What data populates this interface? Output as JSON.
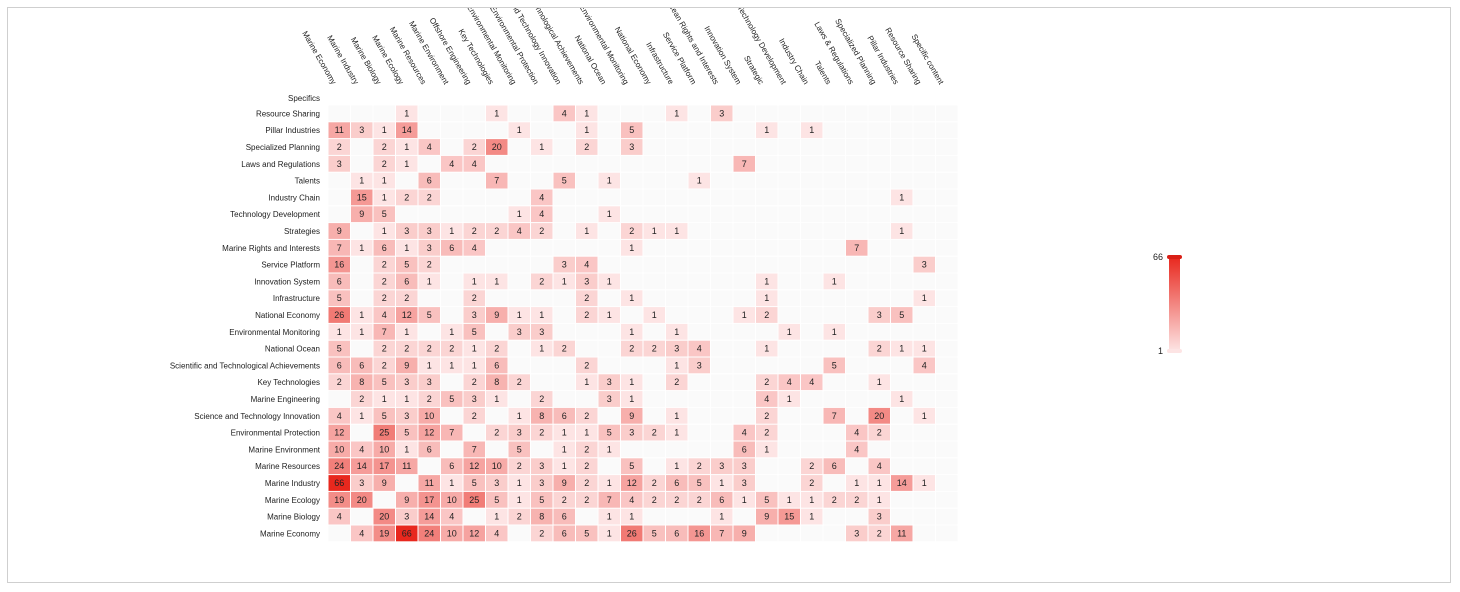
{
  "chart_data": {
    "type": "heatmap",
    "corner_label": "Specifics",
    "columns": [
      "Marine Economy",
      "Marine Industry",
      "Marine Biology",
      "Marine Ecology",
      "Marine Resources",
      "Marine Environment",
      "Offshore Engineering",
      "Key Technologies",
      "Environmental Monitoring",
      "Environmental Protection",
      "Science and Technology Innovation",
      "Scientific and Technological Achievements",
      "National Ocean",
      "Environmental Monitoring",
      "National Economy",
      "Infrastructure",
      "Service Platform",
      "Ocean Rights and Interests",
      "Innovation System",
      "Strategic",
      "Technology Development",
      "Industry Chain",
      "Talents",
      "Laws & Regulations",
      "Specialized Planning",
      "Pillar Industries",
      "Resource Sharing",
      "Specific content"
    ],
    "rows": [
      {
        "label": "Resource Sharing",
        "values": [
          null,
          null,
          null,
          1,
          null,
          null,
          null,
          1,
          null,
          null,
          4,
          1,
          null,
          null,
          null,
          1,
          null,
          3,
          null,
          null,
          null,
          null,
          null,
          null,
          null,
          null,
          null,
          null
        ]
      },
      {
        "label": "Pillar Industries",
        "values": [
          11,
          3,
          1,
          14,
          null,
          null,
          null,
          null,
          1,
          null,
          null,
          1,
          null,
          5,
          null,
          null,
          null,
          null,
          null,
          1,
          null,
          1,
          null,
          null,
          null,
          null,
          null,
          null
        ]
      },
      {
        "label": "Specialized Planning",
        "values": [
          2,
          null,
          2,
          1,
          4,
          null,
          2,
          20,
          null,
          1,
          null,
          2,
          null,
          3,
          null,
          null,
          null,
          null,
          null,
          null,
          null,
          null,
          null,
          null,
          null,
          null,
          null,
          null
        ]
      },
      {
        "label": "Laws and Regulations",
        "values": [
          3,
          null,
          2,
          1,
          null,
          4,
          4,
          null,
          null,
          null,
          null,
          null,
          null,
          null,
          null,
          null,
          null,
          null,
          7,
          null,
          null,
          null,
          null,
          null,
          null,
          null,
          null,
          null
        ]
      },
      {
        "label": "Talents",
        "values": [
          null,
          1,
          1,
          null,
          6,
          null,
          null,
          7,
          null,
          null,
          5,
          null,
          1,
          null,
          null,
          null,
          1,
          null,
          null,
          null,
          null,
          null,
          null,
          null,
          null,
          null,
          null,
          null
        ]
      },
      {
        "label": "Industry Chain",
        "values": [
          null,
          15,
          1,
          2,
          2,
          null,
          null,
          null,
          null,
          4,
          null,
          null,
          null,
          null,
          null,
          null,
          null,
          null,
          null,
          null,
          null,
          null,
          null,
          null,
          null,
          1,
          null,
          null
        ]
      },
      {
        "label": "Technology Development",
        "values": [
          null,
          9,
          5,
          null,
          null,
          null,
          null,
          null,
          1,
          4,
          null,
          null,
          1,
          null,
          null,
          null,
          null,
          null,
          null,
          null,
          null,
          null,
          null,
          null,
          null,
          null,
          null,
          null
        ]
      },
      {
        "label": "Strategies",
        "values": [
          9,
          null,
          1,
          3,
          3,
          1,
          2,
          2,
          4,
          2,
          null,
          1,
          null,
          2,
          1,
          1,
          null,
          null,
          null,
          null,
          null,
          null,
          null,
          null,
          null,
          1,
          null,
          null
        ]
      },
      {
        "label": "Marine Rights and Interests",
        "values": [
          7,
          1,
          6,
          1,
          3,
          6,
          4,
          null,
          null,
          null,
          null,
          null,
          null,
          1,
          null,
          null,
          null,
          null,
          null,
          null,
          null,
          null,
          null,
          7,
          null,
          null,
          null,
          null
        ]
      },
      {
        "label": "Service Platform",
        "values": [
          16,
          null,
          2,
          5,
          2,
          null,
          null,
          null,
          null,
          null,
          3,
          4,
          null,
          null,
          null,
          null,
          null,
          null,
          null,
          null,
          null,
          null,
          null,
          null,
          null,
          null,
          3,
          null
        ]
      },
      {
        "label": "Innovation System",
        "values": [
          6,
          null,
          2,
          6,
          1,
          null,
          1,
          1,
          null,
          2,
          1,
          3,
          1,
          null,
          null,
          null,
          null,
          null,
          null,
          1,
          null,
          null,
          1,
          null,
          null,
          null,
          null,
          null
        ]
      },
      {
        "label": "Infrastructure",
        "values": [
          5,
          null,
          2,
          2,
          null,
          null,
          2,
          null,
          null,
          null,
          null,
          2,
          null,
          1,
          null,
          null,
          null,
          null,
          null,
          1,
          null,
          null,
          null,
          null,
          null,
          null,
          1,
          null
        ]
      },
      {
        "label": "National Economy",
        "values": [
          26,
          1,
          4,
          12,
          5,
          null,
          3,
          9,
          1,
          1,
          null,
          2,
          1,
          null,
          1,
          null,
          null,
          null,
          1,
          2,
          null,
          null,
          null,
          null,
          3,
          5,
          null,
          null
        ]
      },
      {
        "label": "Environmental Monitoring",
        "values": [
          1,
          1,
          7,
          1,
          null,
          1,
          5,
          null,
          3,
          3,
          null,
          null,
          null,
          1,
          null,
          1,
          null,
          null,
          null,
          null,
          1,
          null,
          1,
          null,
          null,
          null,
          null,
          null
        ]
      },
      {
        "label": "National Ocean",
        "values": [
          5,
          null,
          2,
          2,
          2,
          2,
          1,
          2,
          null,
          1,
          2,
          null,
          null,
          2,
          2,
          3,
          4,
          null,
          null,
          1,
          null,
          null,
          null,
          null,
          2,
          1,
          1,
          null
        ]
      },
      {
        "label": "Scientific and Technological Achievements",
        "values": [
          6,
          6,
          2,
          9,
          1,
          1,
          1,
          6,
          null,
          null,
          null,
          2,
          null,
          null,
          null,
          1,
          3,
          null,
          null,
          null,
          null,
          null,
          5,
          null,
          null,
          null,
          4,
          null
        ]
      },
      {
        "label": "Key Technologies",
        "values": [
          2,
          8,
          5,
          3,
          3,
          null,
          2,
          8,
          2,
          null,
          null,
          1,
          3,
          1,
          null,
          2,
          null,
          null,
          null,
          2,
          4,
          4,
          null,
          null,
          1,
          null,
          null,
          null
        ]
      },
      {
        "label": "Marine Engineering",
        "values": [
          null,
          2,
          1,
          1,
          2,
          5,
          3,
          1,
          null,
          2,
          null,
          null,
          3,
          1,
          null,
          null,
          null,
          null,
          null,
          4,
          1,
          null,
          null,
          null,
          null,
          1,
          null,
          null
        ]
      },
      {
        "label": "Science and Technology Innovation",
        "values": [
          4,
          1,
          5,
          3,
          10,
          null,
          2,
          null,
          1,
          8,
          6,
          2,
          null,
          9,
          null,
          1,
          null,
          null,
          null,
          2,
          null,
          null,
          7,
          null,
          20,
          null,
          1,
          null
        ]
      },
      {
        "label": "Environmental Protection",
        "values": [
          12,
          null,
          25,
          5,
          12,
          7,
          null,
          2,
          3,
          2,
          1,
          1,
          5,
          3,
          2,
          1,
          null,
          null,
          4,
          2,
          null,
          null,
          null,
          4,
          2,
          null,
          null,
          null
        ]
      },
      {
        "label": "Marine Environment",
        "values": [
          10,
          4,
          10,
          1,
          6,
          null,
          7,
          null,
          5,
          null,
          1,
          2,
          1,
          null,
          null,
          null,
          null,
          null,
          6,
          1,
          null,
          null,
          null,
          4,
          null,
          null,
          null,
          null
        ]
      },
      {
        "label": "Marine Resources",
        "values": [
          24,
          14,
          17,
          11,
          null,
          6,
          12,
          10,
          2,
          3,
          1,
          2,
          null,
          5,
          null,
          1,
          2,
          3,
          3,
          null,
          null,
          2,
          6,
          null,
          4,
          null,
          null,
          null
        ]
      },
      {
        "label": "Marine Industry",
        "values": [
          66,
          3,
          9,
          null,
          11,
          1,
          5,
          3,
          1,
          3,
          9,
          2,
          1,
          12,
          2,
          6,
          5,
          1,
          3,
          null,
          null,
          2,
          null,
          1,
          1,
          14,
          1,
          null
        ]
      },
      {
        "label": "Marine Ecology",
        "values": [
          19,
          20,
          null,
          9,
          17,
          10,
          25,
          5,
          1,
          5,
          2,
          2,
          7,
          4,
          2,
          2,
          2,
          6,
          1,
          5,
          1,
          1,
          2,
          2,
          1,
          null,
          null,
          null
        ]
      },
      {
        "label": "Marine Biology",
        "values": [
          4,
          null,
          20,
          3,
          14,
          4,
          null,
          1,
          2,
          8,
          6,
          null,
          1,
          1,
          null,
          null,
          null,
          1,
          null,
          9,
          15,
          1,
          null,
          null,
          3,
          null,
          null,
          null
        ]
      },
      {
        "label": "Marine Economy",
        "values": [
          null,
          4,
          19,
          66,
          24,
          10,
          12,
          4,
          null,
          2,
          6,
          5,
          1,
          26,
          5,
          6,
          16,
          7,
          9,
          null,
          null,
          null,
          null,
          3,
          2,
          11,
          null,
          null
        ]
      }
    ],
    "zlim": [
      1,
      66
    ],
    "legend": {
      "max_label": "66",
      "min_label": "1",
      "placement": "right"
    },
    "colors": {
      "low": "#fde4e4",
      "high": "#e8281e",
      "bar_top": "#d91f16",
      "empty": "#fafafa"
    }
  }
}
